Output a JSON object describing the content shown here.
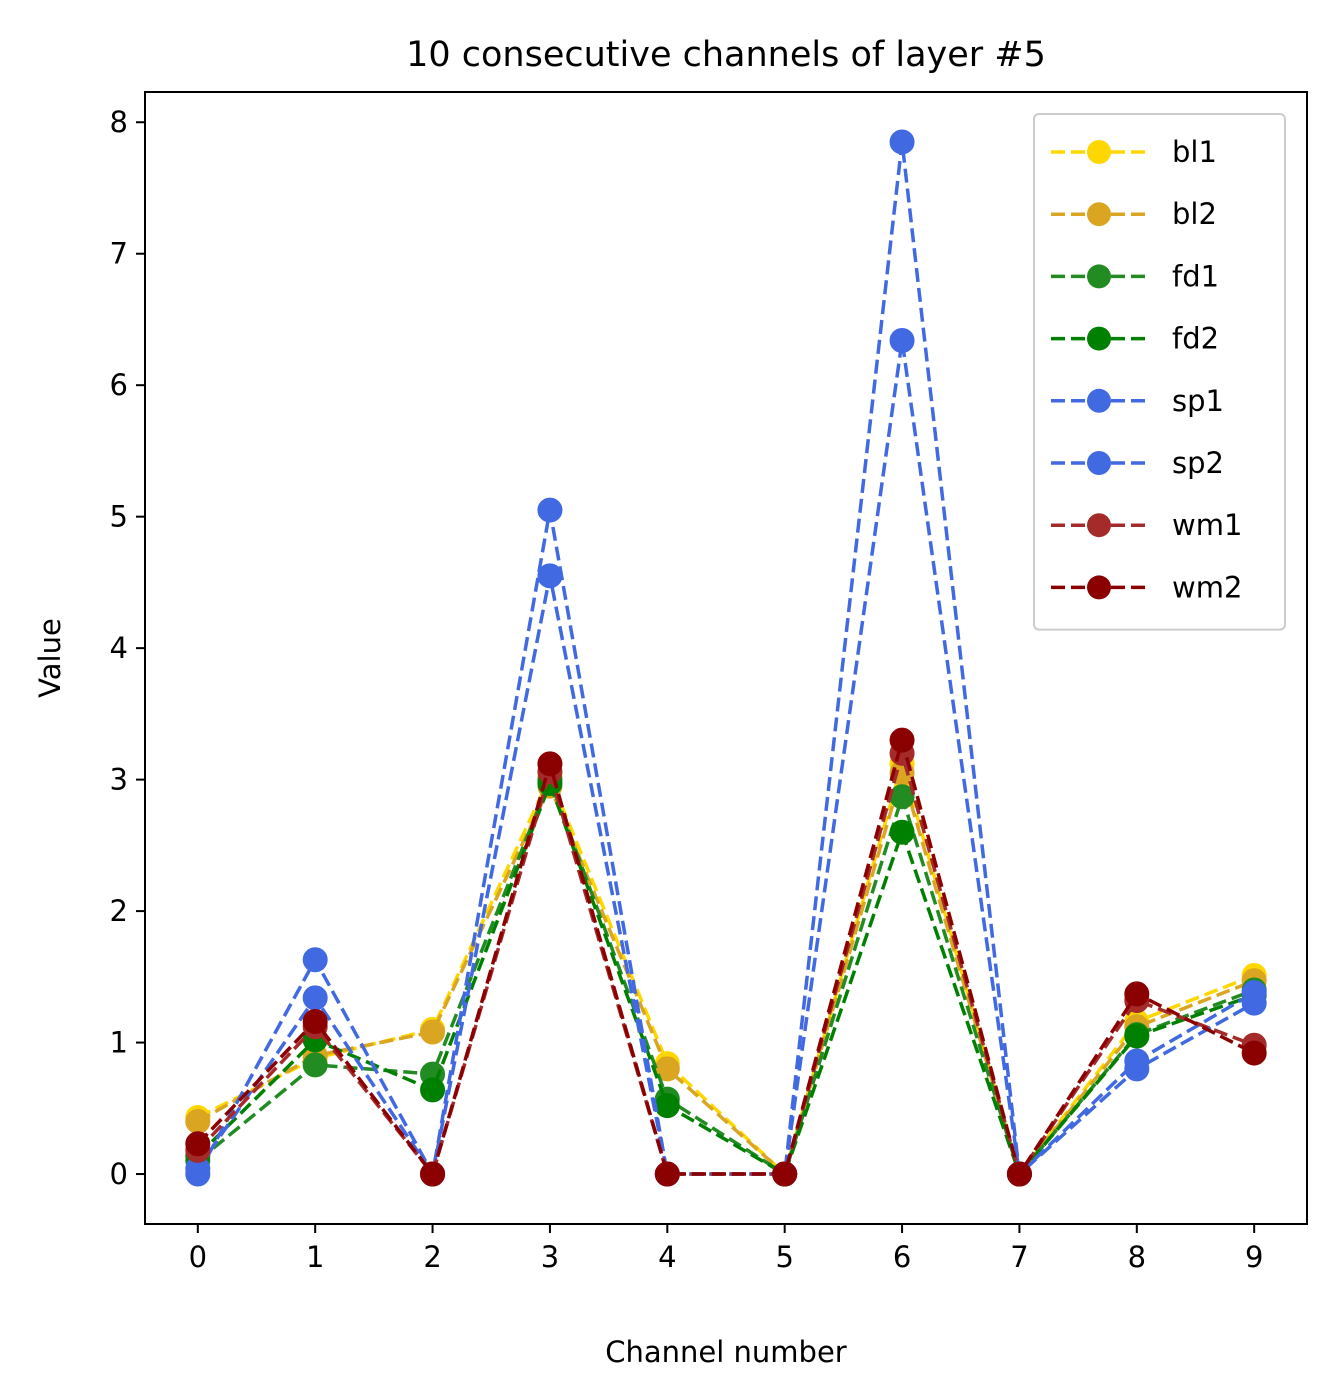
{
  "chart_data": {
    "type": "line",
    "title": "10 consecutive channels of layer #5",
    "xlabel": "Channel number",
    "ylabel": "Value",
    "x": [
      0,
      1,
      2,
      3,
      4,
      5,
      6,
      7,
      8,
      9
    ],
    "xticks": [
      "0",
      "1",
      "2",
      "3",
      "4",
      "5",
      "6",
      "7",
      "8",
      "9"
    ],
    "yticks": [
      "0",
      "1",
      "2",
      "3",
      "4",
      "5",
      "6",
      "7",
      "8"
    ],
    "xlim": [
      -0.45,
      9.45
    ],
    "ylim": [
      -0.38,
      8.23
    ],
    "grid": false,
    "legend_position": "top-right",
    "series": [
      {
        "name": "bl1",
        "color": "#FFD700",
        "values": [
          0.43,
          0.88,
          1.1,
          3.02,
          0.84,
          0.0,
          3.12,
          0.0,
          1.16,
          1.51
        ]
      },
      {
        "name": "bl2",
        "color": "#DAA520",
        "values": [
          0.4,
          0.9,
          1.08,
          2.95,
          0.8,
          0.0,
          3.05,
          0.0,
          1.12,
          1.47
        ]
      },
      {
        "name": "fd1",
        "color": "#228B22",
        "values": [
          0.1,
          0.83,
          0.76,
          3.0,
          0.57,
          0.0,
          2.87,
          0.0,
          1.06,
          1.4
        ]
      },
      {
        "name": "fd2",
        "color": "#008000",
        "values": [
          0.14,
          1.02,
          0.64,
          2.97,
          0.52,
          0.0,
          2.6,
          0.0,
          1.05,
          1.36
        ]
      },
      {
        "name": "sp1",
        "color": "#4169E1",
        "values": [
          0.0,
          1.63,
          0.0,
          5.05,
          0.0,
          0.0,
          7.85,
          0.0,
          0.8,
          1.3
        ]
      },
      {
        "name": "sp2",
        "color": "#4169E1",
        "values": [
          0.04,
          1.34,
          0.0,
          4.55,
          0.0,
          0.0,
          6.34,
          0.0,
          0.86,
          1.38
        ]
      },
      {
        "name": "wm1",
        "color": "#A52A2A",
        "values": [
          0.18,
          1.12,
          0.0,
          3.06,
          0.0,
          0.0,
          3.2,
          0.0,
          1.32,
          0.98
        ]
      },
      {
        "name": "wm2",
        "color": "#8B0000",
        "values": [
          0.23,
          1.16,
          0.0,
          3.12,
          0.0,
          0.0,
          3.3,
          0.0,
          1.37,
          0.92
        ]
      }
    ]
  }
}
